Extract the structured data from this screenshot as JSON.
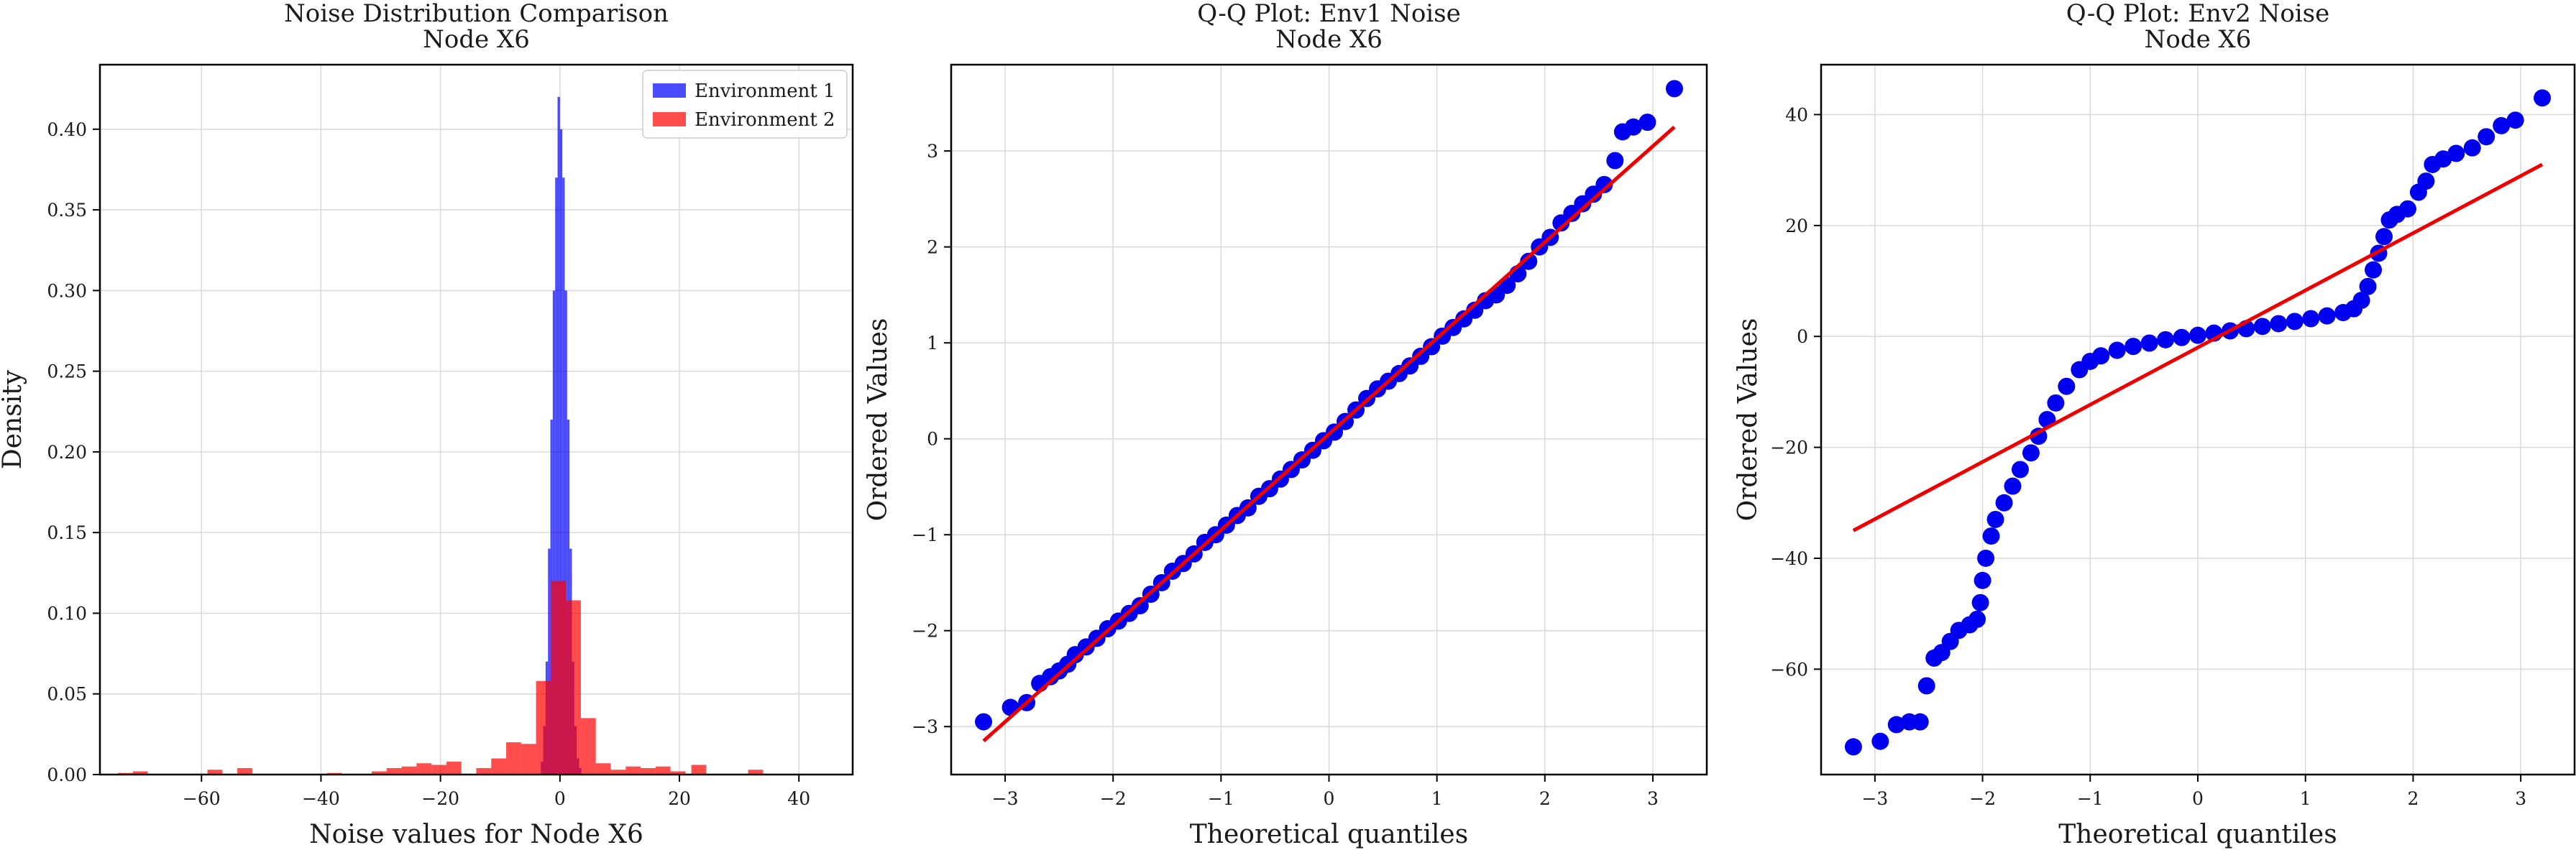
{
  "colors": {
    "env1": "#0000ff",
    "env2": "#ff0000",
    "qq_points": "#0000ee",
    "fit_line": "#ee0000",
    "grid": "#d9d9d9",
    "axes": "#000000"
  },
  "chart_data": [
    {
      "type": "histogram",
      "title": "Noise Distribution Comparison\nNode X6",
      "xlabel": "Noise values for Node X6",
      "ylabel": "Density",
      "xlim": [
        -77,
        49
      ],
      "ylim": [
        0,
        0.44
      ],
      "xticks": [
        -60,
        -40,
        -20,
        0,
        20,
        40
      ],
      "xtick_labels": [
        "−60",
        "−40",
        "−20",
        "0",
        "20",
        "40"
      ],
      "yticks": [
        0.0,
        0.05,
        0.1,
        0.15,
        0.2,
        0.25,
        0.3,
        0.35,
        0.4
      ],
      "ytick_labels": [
        "0.00",
        "0.05",
        "0.10",
        "0.15",
        "0.20",
        "0.25",
        "0.30",
        "0.35",
        "0.40"
      ],
      "grid": true,
      "legend_position": "top-right",
      "series": [
        {
          "name": "Environment 1",
          "color": "#0000ff",
          "alpha": 0.7,
          "bins": [
            {
              "x0": -3.2,
              "x1": -2.8,
              "y": 0.008
            },
            {
              "x0": -2.8,
              "x1": -2.4,
              "y": 0.03
            },
            {
              "x0": -2.4,
              "x1": -2.0,
              "y": 0.07
            },
            {
              "x0": -2.0,
              "x1": -1.6,
              "y": 0.14
            },
            {
              "x0": -1.6,
              "x1": -1.2,
              "y": 0.22
            },
            {
              "x0": -1.2,
              "x1": -0.8,
              "y": 0.3
            },
            {
              "x0": -0.8,
              "x1": -0.4,
              "y": 0.37
            },
            {
              "x0": -0.4,
              "x1": 0.0,
              "y": 0.42
            },
            {
              "x0": 0.0,
              "x1": 0.4,
              "y": 0.4
            },
            {
              "x0": 0.4,
              "x1": 0.8,
              "y": 0.37
            },
            {
              "x0": 0.8,
              "x1": 1.2,
              "y": 0.3
            },
            {
              "x0": 1.2,
              "x1": 1.6,
              "y": 0.22
            },
            {
              "x0": 1.6,
              "x1": 2.0,
              "y": 0.14
            },
            {
              "x0": 2.0,
              "x1": 2.4,
              "y": 0.07
            },
            {
              "x0": 2.4,
              "x1": 2.8,
              "y": 0.03
            },
            {
              "x0": 2.8,
              "x1": 3.2,
              "y": 0.01
            },
            {
              "x0": 3.2,
              "x1": 3.6,
              "y": 0.004
            }
          ]
        },
        {
          "name": "Environment 2",
          "color": "#ff0000",
          "alpha": 0.7,
          "bins": [
            {
              "x0": -74.0,
              "x1": -71.5,
              "y": 0.001
            },
            {
              "x0": -71.5,
              "x1": -69.0,
              "y": 0.002
            },
            {
              "x0": -59.0,
              "x1": -56.5,
              "y": 0.003
            },
            {
              "x0": -54.0,
              "x1": -51.5,
              "y": 0.004
            },
            {
              "x0": -39.0,
              "x1": -36.5,
              "y": 0.001
            },
            {
              "x0": -31.5,
              "x1": -29.0,
              "y": 0.002
            },
            {
              "x0": -29.0,
              "x1": -26.5,
              "y": 0.004
            },
            {
              "x0": -26.5,
              "x1": -24.0,
              "y": 0.005
            },
            {
              "x0": -24.0,
              "x1": -21.5,
              "y": 0.007
            },
            {
              "x0": -21.5,
              "x1": -19.0,
              "y": 0.006
            },
            {
              "x0": -19.0,
              "x1": -16.5,
              "y": 0.008
            },
            {
              "x0": -14.0,
              "x1": -11.5,
              "y": 0.004
            },
            {
              "x0": -11.5,
              "x1": -9.0,
              "y": 0.01
            },
            {
              "x0": -9.0,
              "x1": -6.5,
              "y": 0.02
            },
            {
              "x0": -6.5,
              "x1": -4.0,
              "y": 0.019
            },
            {
              "x0": -4.0,
              "x1": -1.5,
              "y": 0.058
            },
            {
              "x0": -1.5,
              "x1": 1.0,
              "y": 0.12
            },
            {
              "x0": 1.0,
              "x1": 3.5,
              "y": 0.108
            },
            {
              "x0": 3.5,
              "x1": 6.0,
              "y": 0.035
            },
            {
              "x0": 6.0,
              "x1": 8.5,
              "y": 0.007
            },
            {
              "x0": 8.5,
              "x1": 11.0,
              "y": 0.003
            },
            {
              "x0": 11.0,
              "x1": 13.5,
              "y": 0.005
            },
            {
              "x0": 13.5,
              "x1": 16.0,
              "y": 0.004
            },
            {
              "x0": 16.0,
              "x1": 18.5,
              "y": 0.005
            },
            {
              "x0": 18.5,
              "x1": 21.0,
              "y": 0.002
            },
            {
              "x0": 22.0,
              "x1": 24.5,
              "y": 0.006
            },
            {
              "x0": 31.5,
              "x1": 34.0,
              "y": 0.003
            }
          ]
        }
      ]
    },
    {
      "type": "scatter",
      "title": "Q-Q Plot: Env1 Noise\nNode X6",
      "xlabel": "Theoretical quantiles",
      "ylabel": "Ordered Values",
      "xlim": [
        -3.5,
        3.5
      ],
      "ylim": [
        -3.5,
        3.9
      ],
      "xticks": [
        -3,
        -2,
        -1,
        0,
        1,
        2,
        3
      ],
      "xtick_labels": [
        "−3",
        "−2",
        "−1",
        "0",
        "1",
        "2",
        "3"
      ],
      "yticks": [
        -3,
        -2,
        -1,
        0,
        1,
        2,
        3
      ],
      "ytick_labels": [
        "−3",
        "−2",
        "−1",
        "0",
        "1",
        "2",
        "3"
      ],
      "grid": true,
      "fit_line": {
        "x": [
          -3.2,
          3.2
        ],
        "y": [
          -3.15,
          3.25
        ]
      },
      "points": [
        [
          -3.2,
          -2.95
        ],
        [
          -2.95,
          -2.8
        ],
        [
          -2.8,
          -2.75
        ],
        [
          -2.68,
          -2.55
        ],
        [
          -2.58,
          -2.48
        ],
        [
          -2.5,
          -2.42
        ],
        [
          -2.42,
          -2.35
        ],
        [
          -2.35,
          -2.25
        ],
        [
          -2.25,
          -2.17
        ],
        [
          -2.15,
          -2.08
        ],
        [
          -2.05,
          -1.98
        ],
        [
          -1.95,
          -1.9
        ],
        [
          -1.85,
          -1.82
        ],
        [
          -1.75,
          -1.74
        ],
        [
          -1.65,
          -1.62
        ],
        [
          -1.55,
          -1.5
        ],
        [
          -1.45,
          -1.38
        ],
        [
          -1.35,
          -1.3
        ],
        [
          -1.25,
          -1.2
        ],
        [
          -1.15,
          -1.08
        ],
        [
          -1.05,
          -1.0
        ],
        [
          -0.95,
          -0.9
        ],
        [
          -0.85,
          -0.8
        ],
        [
          -0.75,
          -0.72
        ],
        [
          -0.65,
          -0.6
        ],
        [
          -0.55,
          -0.52
        ],
        [
          -0.45,
          -0.42
        ],
        [
          -0.35,
          -0.32
        ],
        [
          -0.25,
          -0.22
        ],
        [
          -0.15,
          -0.12
        ],
        [
          -0.05,
          -0.02
        ],
        [
          0.05,
          0.07
        ],
        [
          0.15,
          0.18
        ],
        [
          0.25,
          0.3
        ],
        [
          0.35,
          0.42
        ],
        [
          0.45,
          0.52
        ],
        [
          0.55,
          0.6
        ],
        [
          0.65,
          0.68
        ],
        [
          0.75,
          0.76
        ],
        [
          0.85,
          0.86
        ],
        [
          0.95,
          0.96
        ],
        [
          1.05,
          1.07
        ],
        [
          1.15,
          1.16
        ],
        [
          1.25,
          1.25
        ],
        [
          1.35,
          1.34
        ],
        [
          1.45,
          1.44
        ],
        [
          1.55,
          1.5
        ],
        [
          1.65,
          1.6
        ],
        [
          1.75,
          1.72
        ],
        [
          1.85,
          1.85
        ],
        [
          1.95,
          2.0
        ],
        [
          2.05,
          2.1
        ],
        [
          2.15,
          2.25
        ],
        [
          2.25,
          2.35
        ],
        [
          2.35,
          2.45
        ],
        [
          2.45,
          2.55
        ],
        [
          2.55,
          2.65
        ],
        [
          2.65,
          2.9
        ],
        [
          2.72,
          3.2
        ],
        [
          2.82,
          3.25
        ],
        [
          2.95,
          3.3
        ],
        [
          3.2,
          3.65
        ]
      ]
    },
    {
      "type": "scatter",
      "title": "Q-Q Plot: Env2 Noise\nNode X6",
      "xlabel": "Theoretical quantiles",
      "ylabel": "Ordered Values",
      "xlim": [
        -3.5,
        3.5
      ],
      "ylim": [
        -79,
        49
      ],
      "xticks": [
        -3,
        -2,
        -1,
        0,
        1,
        2,
        3
      ],
      "xtick_labels": [
        "−3",
        "−2",
        "−1",
        "0",
        "1",
        "2",
        "3"
      ],
      "yticks": [
        -60,
        -40,
        -20,
        0,
        20,
        40
      ],
      "ytick_labels": [
        "−60",
        "−40",
        "−20",
        "0",
        "20",
        "40"
      ],
      "grid": true,
      "fit_line": {
        "x": [
          -3.2,
          3.2
        ],
        "y": [
          -35,
          31
        ]
      },
      "points": [
        [
          -3.2,
          -74
        ],
        [
          -2.95,
          -73
        ],
        [
          -2.8,
          -70
        ],
        [
          -2.68,
          -69.5
        ],
        [
          -2.58,
          -69.5
        ],
        [
          -2.52,
          -63
        ],
        [
          -2.45,
          -58
        ],
        [
          -2.38,
          -57
        ],
        [
          -2.3,
          -55
        ],
        [
          -2.22,
          -53
        ],
        [
          -2.12,
          -52
        ],
        [
          -2.05,
          -51
        ],
        [
          -2.02,
          -48
        ],
        [
          -2.0,
          -44
        ],
        [
          -1.97,
          -40
        ],
        [
          -1.92,
          -36
        ],
        [
          -1.88,
          -33
        ],
        [
          -1.8,
          -30
        ],
        [
          -1.72,
          -27
        ],
        [
          -1.65,
          -24
        ],
        [
          -1.55,
          -21
        ],
        [
          -1.48,
          -18
        ],
        [
          -1.4,
          -15
        ],
        [
          -1.32,
          -12
        ],
        [
          -1.22,
          -9
        ],
        [
          -1.1,
          -6
        ],
        [
          -1.0,
          -4.5
        ],
        [
          -0.9,
          -3.5
        ],
        [
          -0.75,
          -2.5
        ],
        [
          -0.6,
          -1.8
        ],
        [
          -0.45,
          -1.2
        ],
        [
          -0.3,
          -0.6
        ],
        [
          -0.15,
          -0.2
        ],
        [
          0.0,
          0.2
        ],
        [
          0.15,
          0.6
        ],
        [
          0.3,
          1.0
        ],
        [
          0.45,
          1.4
        ],
        [
          0.6,
          1.8
        ],
        [
          0.75,
          2.3
        ],
        [
          0.9,
          2.7
        ],
        [
          1.05,
          3.2
        ],
        [
          1.2,
          3.7
        ],
        [
          1.35,
          4.3
        ],
        [
          1.45,
          5.0
        ],
        [
          1.52,
          6.5
        ],
        [
          1.58,
          9
        ],
        [
          1.63,
          12
        ],
        [
          1.68,
          15
        ],
        [
          1.73,
          18
        ],
        [
          1.78,
          21
        ],
        [
          1.85,
          22
        ],
        [
          1.95,
          23
        ],
        [
          2.05,
          26
        ],
        [
          2.12,
          28
        ],
        [
          2.18,
          31
        ],
        [
          2.28,
          32
        ],
        [
          2.4,
          33
        ],
        [
          2.55,
          34
        ],
        [
          2.68,
          36
        ],
        [
          2.82,
          38
        ],
        [
          2.95,
          39
        ],
        [
          3.2,
          43
        ]
      ]
    }
  ]
}
